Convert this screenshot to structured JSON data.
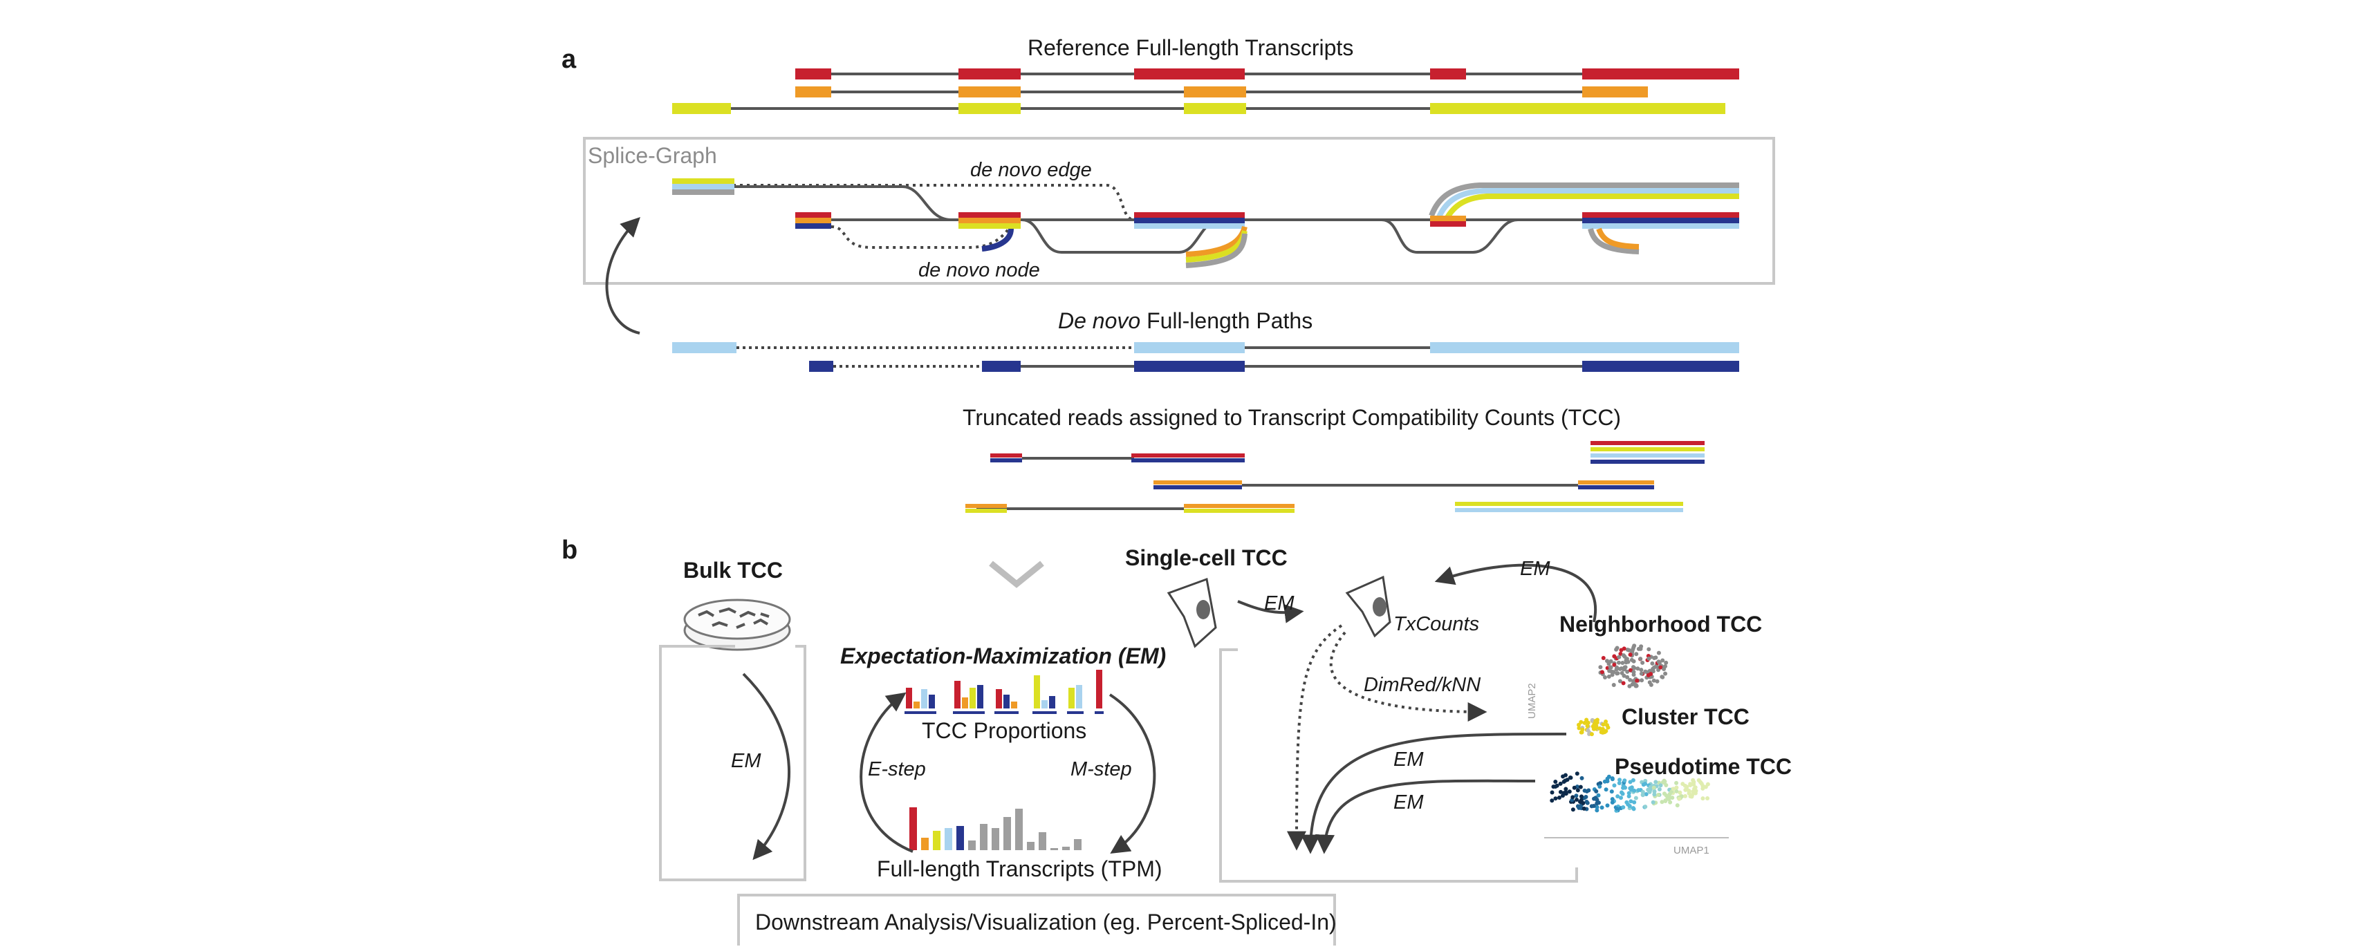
{
  "panels": {
    "a": "a",
    "b": "b"
  },
  "labels": {
    "ref_title": "Reference Full-length Transcripts",
    "splice_graph": "Splice-Graph",
    "de_novo_edge": "de novo edge",
    "de_novo_node": "de novo node",
    "paths_title_italic": "De novo",
    "paths_title_rest": " Full-length Paths",
    "tcc_title": "Truncated reads assigned to Transcript Compatibility Counts (TCC)",
    "bulk_tcc": "Bulk TCC",
    "em_bulk": "EM",
    "em_title": "Expectation-Maximization (EM)",
    "tcc_proportions": "TCC Proportions",
    "e_step": "E-step",
    "m_step": "M-step",
    "full_length_tpm": "Full-length Transcripts (TPM)",
    "single_cell_tcc": "Single-cell TCC",
    "em_sc": "EM",
    "txcounts": "TxCounts",
    "em_top": "EM",
    "neighborhood_tcc": "Neighborhood TCC",
    "dimred": "DimRed/kNN",
    "umap2": "UMAP2",
    "cluster_tcc": "Cluster TCC",
    "em_cluster": "EM",
    "pseudotime_tcc": "Pseudotime TCC",
    "em_pseudo": "EM",
    "umap1": "UMAP1",
    "downstream": "Downstream Analysis/Visualization (eg. Percent-Spliced-In)"
  },
  "colors": {
    "red": "#c7202f",
    "orange": "#ef9a26",
    "yellow": "#dbe023",
    "light_blue": "#a9d3ef",
    "dark_blue": "#27368f",
    "gray": "#9e9e9e",
    "line": "#555555",
    "box": "#c8c8c8"
  }
}
